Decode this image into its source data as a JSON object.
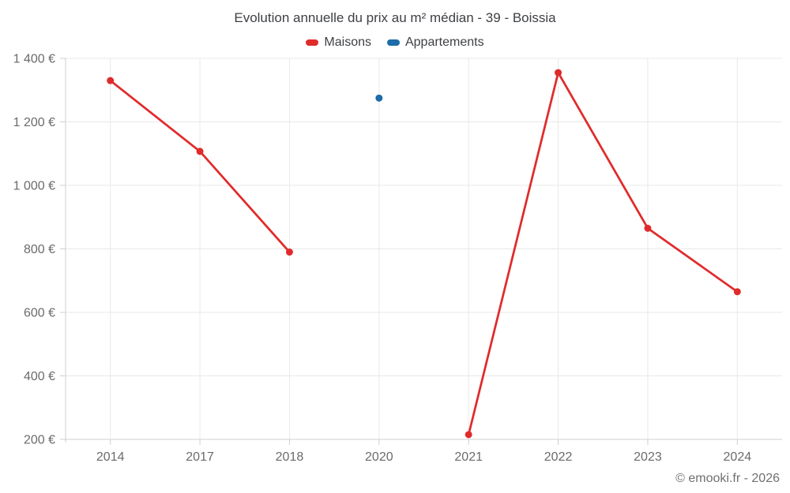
{
  "chart_data": {
    "type": "line",
    "title": "Evolution annuelle du prix au m² médian - 39 - Boissia",
    "categories": [
      "2014",
      "2017",
      "2018",
      "2020",
      "2021",
      "2022",
      "2023",
      "2024"
    ],
    "series": [
      {
        "name": "Maisons",
        "color": "#e02b2b",
        "values": [
          1330,
          1107,
          790,
          null,
          215,
          1355,
          865,
          665
        ]
      },
      {
        "name": "Appartements",
        "color": "#1b6ca8",
        "values": [
          null,
          null,
          null,
          1275,
          null,
          null,
          null,
          null
        ]
      }
    ],
    "xlabel": "",
    "ylabel": "",
    "ylim": [
      200,
      1400
    ],
    "yticks": [
      200,
      400,
      600,
      800,
      1000,
      1200,
      1400
    ],
    "ytick_labels": [
      "200 €",
      "400 €",
      "600 €",
      "800 €",
      "1 000 €",
      "1 200 €",
      "1 400 €"
    ],
    "grid": true,
    "legend_position": "top",
    "marker": "circle"
  },
  "footer": {
    "credit": "© emooki.fr - 2026"
  },
  "colors": {
    "maisons": "#e02b2b",
    "appartements": "#1b6ca8",
    "gridline": "#e9e9e9",
    "axis": "#cfcfcf",
    "title_text": "#3e4044",
    "tick_text": "#6b6b6b",
    "footer_text": "#6f6f6f"
  }
}
